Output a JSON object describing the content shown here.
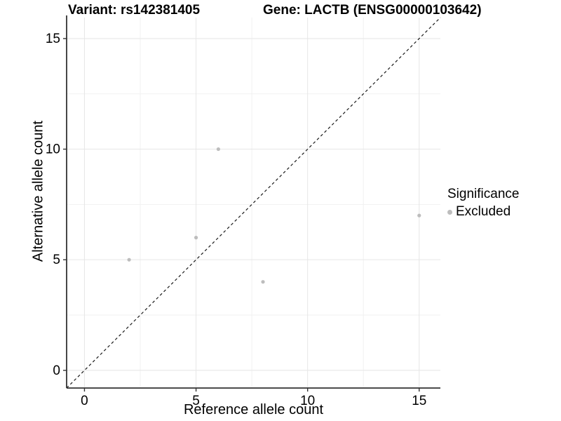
{
  "title": {
    "variant": "Variant: rs142381405",
    "gene": "Gene: LACTB (ENSG00000103642)"
  },
  "chart_data": {
    "type": "scatter",
    "xlabel": "Reference allele count",
    "ylabel": "Alternative allele count",
    "xlim": [
      -0.8,
      15.95
    ],
    "ylim": [
      -0.8,
      15.95
    ],
    "x_ticks": [
      0,
      5,
      10,
      15
    ],
    "y_ticks": [
      0,
      5,
      10,
      15
    ],
    "minor_gridlines": [
      2.5,
      7.5,
      12.5
    ],
    "grid": true,
    "series": [
      {
        "name": "Excluded",
        "color": "#bdbdbd",
        "points": [
          [
            2,
            5
          ],
          [
            5,
            6
          ],
          [
            6,
            10
          ],
          [
            8,
            4
          ],
          [
            15,
            7
          ]
        ]
      }
    ],
    "reference_line": {
      "type": "identity",
      "style": "dashed",
      "color": "#1a1a1a"
    },
    "legend": {
      "title": "Significance",
      "position": "right",
      "items": [
        {
          "label": "Excluded",
          "color": "#bdbdbd"
        }
      ]
    }
  }
}
